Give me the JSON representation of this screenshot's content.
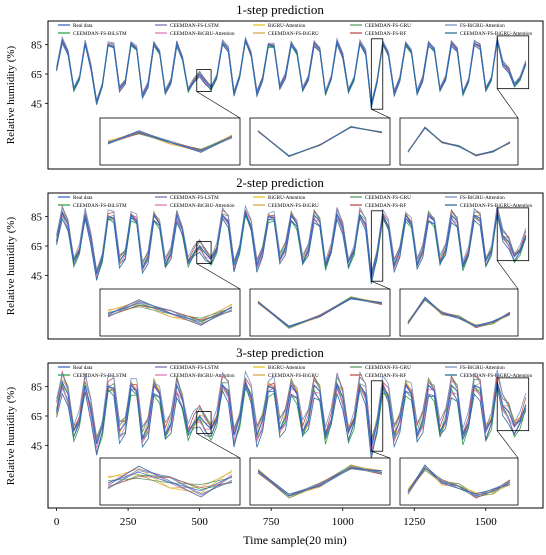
{
  "chart_data": [
    {
      "type": "line",
      "title": "1-step prediction",
      "xlabel": "",
      "ylabel": "Relative humidity (%)",
      "yticks": [
        45,
        65,
        85
      ],
      "xlim": [
        -30,
        1700
      ],
      "ylim": [
        -5,
        100
      ],
      "legend_position": "top",
      "legend": [
        "Real data",
        "CEEMDAN-FS-BiLSTM",
        "CEEMDAN-FS-LSTM",
        "CEEMDAN-BiGRU-Attention",
        "BiGRU-Attention",
        "CEEMDAN-FS-BiGRU",
        "CEEMDAN-FS-GRU",
        "CEEMDAN-FS-RF",
        "FS-BiGRU-Attention",
        "CEEMDAN-FS-BiGRU-Attention"
      ],
      "zoom_regions": [
        [
          490,
          540
        ],
        [
          1100,
          1140
        ],
        [
          1540,
          1650
        ]
      ],
      "x": [
        0,
        20,
        40,
        60,
        80,
        100,
        120,
        140,
        160,
        180,
        200,
        220,
        240,
        260,
        280,
        300,
        320,
        340,
        360,
        380,
        400,
        420,
        440,
        460,
        480,
        500,
        520,
        540,
        560,
        580,
        600,
        620,
        640,
        660,
        680,
        700,
        720,
        740,
        760,
        780,
        800,
        820,
        840,
        860,
        880,
        900,
        920,
        940,
        960,
        980,
        1000,
        1020,
        1040,
        1060,
        1080,
        1100,
        1120,
        1140,
        1160,
        1180,
        1200,
        1220,
        1240,
        1260,
        1280,
        1300,
        1320,
        1340,
        1360,
        1380,
        1400,
        1420,
        1440,
        1460,
        1480,
        1500,
        1520,
        1540,
        1560,
        1580,
        1600,
        1620,
        1640
      ],
      "real_values": [
        68,
        88,
        80,
        55,
        62,
        86,
        70,
        46,
        58,
        85,
        84,
        55,
        60,
        86,
        82,
        50,
        58,
        86,
        80,
        52,
        60,
        86,
        76,
        54,
        60,
        65,
        60,
        56,
        63,
        86,
        82,
        52,
        64,
        88,
        78,
        52,
        62,
        85,
        84,
        56,
        64,
        86,
        80,
        54,
        62,
        86,
        82,
        52,
        62,
        87,
        78,
        54,
        62,
        86,
        80,
        44,
        60,
        86,
        78,
        52,
        62,
        86,
        80,
        52,
        62,
        86,
        82,
        54,
        62,
        86,
        82,
        52,
        60,
        86,
        84,
        55,
        62,
        88,
        72,
        68,
        58,
        62,
        72
      ]
    },
    {
      "type": "line",
      "title": "2-step prediction",
      "xlabel": "",
      "ylabel": "Relative humidity (%)",
      "yticks": [
        45,
        65,
        85
      ],
      "xlim": [
        -30,
        1700
      ],
      "ylim": [
        -5,
        100
      ],
      "legend_position": "top",
      "legend": [
        "Real data",
        "CEEMDAN-FS-BiLSTM",
        "CEEMDAN-FS-LSTM",
        "CEEMDAN-BiGRU-Attention",
        "BiGRU-Attention",
        "CEEMDAN-FS-BiGRU",
        "CEEMDAN-FS-GRU",
        "CEEMDAN-FS-RF",
        "FS-BiGRU-Attention",
        "CEEMDAN-FS-BiGRU-Attention"
      ],
      "zoom_regions": [
        [
          490,
          540
        ],
        [
          1100,
          1140
        ],
        [
          1540,
          1650
        ]
      ],
      "x": [
        0,
        20,
        40,
        60,
        80,
        100,
        120,
        140,
        160,
        180,
        200,
        220,
        240,
        260,
        280,
        300,
        320,
        340,
        360,
        380,
        400,
        420,
        440,
        460,
        480,
        500,
        520,
        540,
        560,
        580,
        600,
        620,
        640,
        660,
        680,
        700,
        720,
        740,
        760,
        780,
        800,
        820,
        840,
        860,
        880,
        900,
        920,
        940,
        960,
        980,
        1000,
        1020,
        1040,
        1060,
        1080,
        1100,
        1120,
        1140,
        1160,
        1180,
        1200,
        1220,
        1240,
        1260,
        1280,
        1300,
        1320,
        1340,
        1360,
        1380,
        1400,
        1420,
        1440,
        1460,
        1480,
        1500,
        1520,
        1540,
        1560,
        1580,
        1600,
        1620,
        1640
      ],
      "real_values": [
        68,
        88,
        80,
        55,
        62,
        86,
        70,
        46,
        58,
        85,
        84,
        55,
        60,
        86,
        82,
        50,
        58,
        86,
        80,
        52,
        60,
        86,
        76,
        54,
        60,
        65,
        60,
        56,
        63,
        86,
        82,
        52,
        64,
        88,
        78,
        52,
        62,
        85,
        84,
        56,
        64,
        86,
        80,
        54,
        62,
        86,
        82,
        52,
        62,
        87,
        78,
        54,
        62,
        86,
        80,
        44,
        60,
        86,
        78,
        52,
        62,
        86,
        80,
        52,
        62,
        86,
        82,
        54,
        62,
        86,
        82,
        52,
        60,
        86,
        84,
        55,
        62,
        88,
        72,
        68,
        58,
        62,
        72
      ]
    },
    {
      "type": "line",
      "title": "3-step prediction",
      "xlabel": "Time sample(20 min)",
      "ylabel": "Relative humidity (%)",
      "xticks": [
        0,
        250,
        500,
        750,
        1000,
        1250,
        1500
      ],
      "yticks": [
        45,
        65,
        85
      ],
      "xlim": [
        -30,
        1700
      ],
      "ylim": [
        -5,
        100
      ],
      "legend_position": "top",
      "legend": [
        "Real data",
        "CEEMDAN-FS-BiLSTM",
        "CEEMDAN-FS-LSTM",
        "CEEMDAN-BiGRU-Attention",
        "BiGRU-Attention",
        "CEEMDAN-FS-BiGRU",
        "CEEMDAN-FS-GRU",
        "CEEMDAN-FS-RF",
        "FS-BiGRU-Attention",
        "CEEMDAN-FS-BiGRU-Attention"
      ],
      "zoom_regions": [
        [
          490,
          540
        ],
        [
          1100,
          1140
        ],
        [
          1540,
          1650
        ]
      ],
      "x": [
        0,
        20,
        40,
        60,
        80,
        100,
        120,
        140,
        160,
        180,
        200,
        220,
        240,
        260,
        280,
        300,
        320,
        340,
        360,
        380,
        400,
        420,
        440,
        460,
        480,
        500,
        520,
        540,
        560,
        580,
        600,
        620,
        640,
        660,
        680,
        700,
        720,
        740,
        760,
        780,
        800,
        820,
        840,
        860,
        880,
        900,
        920,
        940,
        960,
        980,
        1000,
        1020,
        1040,
        1060,
        1080,
        1100,
        1120,
        1140,
        1160,
        1180,
        1200,
        1220,
        1240,
        1260,
        1280,
        1300,
        1320,
        1340,
        1360,
        1380,
        1400,
        1420,
        1440,
        1460,
        1480,
        1500,
        1520,
        1540,
        1560,
        1580,
        1600,
        1620,
        1640
      ],
      "real_values": [
        68,
        88,
        80,
        55,
        62,
        86,
        70,
        46,
        58,
        85,
        84,
        55,
        60,
        86,
        82,
        50,
        58,
        86,
        80,
        52,
        60,
        86,
        76,
        54,
        60,
        65,
        60,
        56,
        63,
        86,
        82,
        52,
        64,
        88,
        78,
        52,
        62,
        85,
        84,
        56,
        64,
        86,
        80,
        54,
        62,
        86,
        82,
        52,
        62,
        87,
        78,
        54,
        62,
        86,
        80,
        44,
        60,
        86,
        78,
        52,
        62,
        86,
        80,
        52,
        62,
        86,
        82,
        54,
        62,
        86,
        82,
        52,
        60,
        86,
        84,
        55,
        62,
        88,
        72,
        68,
        58,
        62,
        72
      ]
    }
  ],
  "series_colors": [
    "#3b66c4",
    "#2ea043",
    "#8a6fb0",
    "#e07bb8",
    "#e8c21a",
    "#d9a648",
    "#5f9e6e",
    "#c0504d",
    "#7a93c4",
    "#2c6e9e"
  ]
}
